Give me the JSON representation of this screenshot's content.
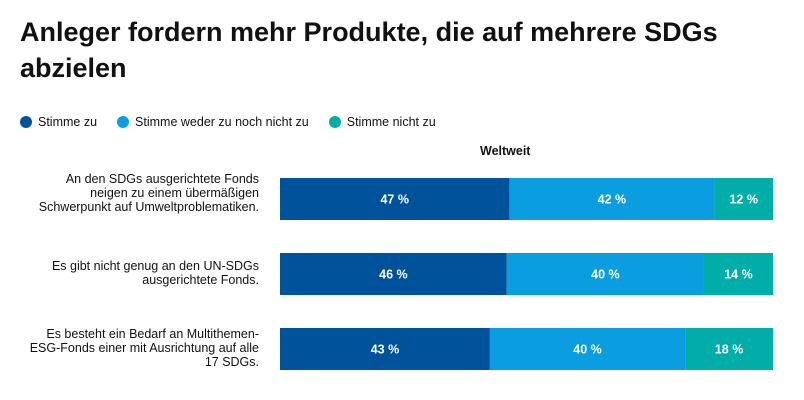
{
  "title": "Anleger fordern mehr Produkte, die auf mehrere SDGs abzielen",
  "subtitle": "Weltweit",
  "colors": {
    "agree": "#00539b",
    "neutral": "#0a9ee0",
    "disagree": "#00ada8"
  },
  "chart_data": {
    "type": "bar",
    "orientation": "horizontal",
    "stacked": true,
    "title": "Anleger fordern mehr Produkte, die auf mehrere SDGs abzielen",
    "subtitle": "Weltweit",
    "legend_position": "top-left",
    "categories": [
      "An den SDGs ausgerichtete Fonds neigen zu einem  übermäßigen Schwerpunkt auf Umweltproblematiken.",
      "Es gibt nicht genug an den UN-SDGs ausgerichtete Fonds.",
      "Es besteht ein Bedarf an Multithemen-ESG-Fonds einer mit Ausrichtung auf alle 17 SDGs."
    ],
    "series": [
      {
        "name": "Stimme zu",
        "values": [
          47,
          46,
          43
        ],
        "labels": [
          "47 %",
          "46 %",
          "43 %"
        ]
      },
      {
        "name": "Stimme weder zu noch nicht zu",
        "values": [
          42,
          40,
          40
        ],
        "labels": [
          "42 %",
          "40 %",
          "40 %"
        ]
      },
      {
        "name": "Stimme nicht zu",
        "values": [
          12,
          14,
          18
        ],
        "labels": [
          "12 %",
          "14 %",
          "18 %"
        ]
      }
    ]
  }
}
